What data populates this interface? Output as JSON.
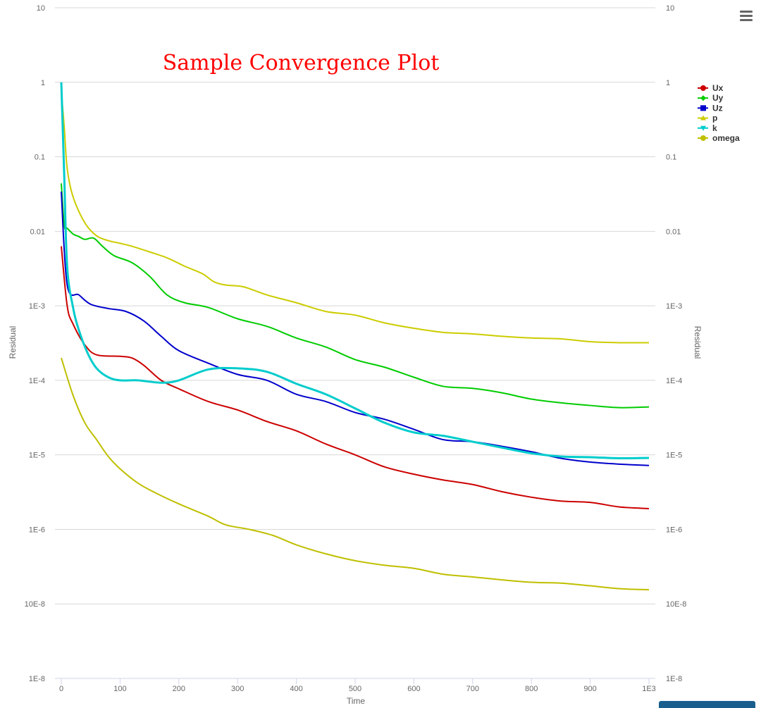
{
  "chart_data": {
    "type": "line",
    "title": "Sample Convergence Plot",
    "xlabel": "Time",
    "ylabel": "Residual",
    "y2label": "Residual",
    "yscale": "log",
    "xlim": [
      0,
      1000
    ],
    "ylim": [
      1e-08,
      10
    ],
    "grid": true,
    "legend_position": "right",
    "x_ticks": [
      {
        "value": 0,
        "label": "0"
      },
      {
        "value": 100,
        "label": "100"
      },
      {
        "value": 200,
        "label": "200"
      },
      {
        "value": 300,
        "label": "300"
      },
      {
        "value": 400,
        "label": "400"
      },
      {
        "value": 500,
        "label": "500"
      },
      {
        "value": 600,
        "label": "600"
      },
      {
        "value": 700,
        "label": "700"
      },
      {
        "value": 800,
        "label": "800"
      },
      {
        "value": 900,
        "label": "900"
      },
      {
        "value": 1000,
        "label": "1E3"
      }
    ],
    "y_ticks": [
      {
        "value": 10,
        "label": "10"
      },
      {
        "value": 1,
        "label": "1"
      },
      {
        "value": 0.1,
        "label": "0.1"
      },
      {
        "value": 0.01,
        "label": "0.01"
      },
      {
        "value": 0.001,
        "label": "1E-3"
      },
      {
        "value": 0.0001,
        "label": "1E-4"
      },
      {
        "value": 1e-05,
        "label": "1E-5"
      },
      {
        "value": 1e-06,
        "label": "1E-6"
      },
      {
        "value": 1e-07,
        "label": "10E-8"
      },
      {
        "value": 1e-08,
        "label": "1E-8"
      }
    ],
    "series": [
      {
        "name": "Ux",
        "color": "#cc0000",
        "marker": "circle",
        "points": [
          [
            0,
            0.0063
          ],
          [
            10,
            0.001
          ],
          [
            20,
            0.00057
          ],
          [
            40,
            0.0003
          ],
          [
            60,
            0.00022
          ],
          [
            100,
            0.00021
          ],
          [
            120,
            0.0002
          ],
          [
            140,
            0.00016
          ],
          [
            170,
            0.0001
          ],
          [
            200,
            7.7e-05
          ],
          [
            250,
            5.2e-05
          ],
          [
            300,
            4e-05
          ],
          [
            350,
            2.8e-05
          ],
          [
            400,
            2.1e-05
          ],
          [
            450,
            1.4e-05
          ],
          [
            500,
            1e-05
          ],
          [
            550,
            6.9e-06
          ],
          [
            600,
            5.5e-06
          ],
          [
            650,
            4.6e-06
          ],
          [
            700,
            4e-06
          ],
          [
            750,
            3.2e-06
          ],
          [
            800,
            2.7e-06
          ],
          [
            850,
            2.4e-06
          ],
          [
            900,
            2.3e-06
          ],
          [
            950,
            2e-06
          ],
          [
            1000,
            1.9e-06
          ]
        ]
      },
      {
        "name": "Uy",
        "color": "#00cc00",
        "marker": "diamond",
        "points": [
          [
            0,
            0.044
          ],
          [
            5,
            0.012
          ],
          [
            10,
            0.011
          ],
          [
            20,
            0.0092
          ],
          [
            30,
            0.0085
          ],
          [
            40,
            0.0078
          ],
          [
            55,
            0.0081
          ],
          [
            70,
            0.0063
          ],
          [
            90,
            0.0047
          ],
          [
            120,
            0.0038
          ],
          [
            150,
            0.0025
          ],
          [
            180,
            0.0014
          ],
          [
            210,
            0.0011
          ],
          [
            250,
            0.00095
          ],
          [
            300,
            0.00067
          ],
          [
            350,
            0.00053
          ],
          [
            400,
            0.00037
          ],
          [
            450,
            0.00028
          ],
          [
            500,
            0.00019
          ],
          [
            550,
            0.00015
          ],
          [
            600,
            0.00011
          ],
          [
            650,
            8.3e-05
          ],
          [
            700,
            7.8e-05
          ],
          [
            750,
            6.8e-05
          ],
          [
            800,
            5.6e-05
          ],
          [
            850,
            5e-05
          ],
          [
            900,
            4.6e-05
          ],
          [
            950,
            4.3e-05
          ],
          [
            1000,
            4.4e-05
          ]
        ]
      },
      {
        "name": "Uz",
        "color": "#0000cc",
        "marker": "square",
        "points": [
          [
            0,
            0.034
          ],
          [
            10,
            0.0019
          ],
          [
            30,
            0.0014
          ],
          [
            50,
            0.00105
          ],
          [
            80,
            0.00092
          ],
          [
            110,
            0.00084
          ],
          [
            140,
            0.00063
          ],
          [
            170,
            0.00039
          ],
          [
            200,
            0.00025
          ],
          [
            250,
            0.00017
          ],
          [
            300,
            0.00012
          ],
          [
            350,
            0.0001
          ],
          [
            400,
            6.5e-05
          ],
          [
            450,
            5.2e-05
          ],
          [
            500,
            3.7e-05
          ],
          [
            550,
            3e-05
          ],
          [
            600,
            2.2e-05
          ],
          [
            650,
            1.6e-05
          ],
          [
            700,
            1.5e-05
          ],
          [
            750,
            1.3e-05
          ],
          [
            800,
            1.1e-05
          ],
          [
            850,
            9e-06
          ],
          [
            900,
            8e-06
          ],
          [
            950,
            7.5e-06
          ],
          [
            1000,
            7.2e-06
          ]
        ]
      },
      {
        "name": "p",
        "color": "#cccc00",
        "marker": "triangle",
        "points": [
          [
            0,
            0.75
          ],
          [
            5,
            0.25
          ],
          [
            10,
            0.07
          ],
          [
            20,
            0.029
          ],
          [
            40,
            0.013
          ],
          [
            60,
            0.0087
          ],
          [
            80,
            0.0075
          ],
          [
            100,
            0.0069
          ],
          [
            120,
            0.0063
          ],
          [
            150,
            0.0053
          ],
          [
            180,
            0.0044
          ],
          [
            210,
            0.0034
          ],
          [
            240,
            0.0027
          ],
          [
            260,
            0.0021
          ],
          [
            280,
            0.0019
          ],
          [
            310,
            0.0018
          ],
          [
            350,
            0.0014
          ],
          [
            400,
            0.0011
          ],
          [
            450,
            0.00084
          ],
          [
            500,
            0.00075
          ],
          [
            550,
            0.00059
          ],
          [
            600,
            0.0005
          ],
          [
            650,
            0.00044
          ],
          [
            700,
            0.00042
          ],
          [
            750,
            0.00039
          ],
          [
            800,
            0.00037
          ],
          [
            850,
            0.00036
          ],
          [
            900,
            0.00033
          ],
          [
            950,
            0.00032
          ],
          [
            1000,
            0.00032
          ]
        ]
      },
      {
        "name": "k",
        "color": "#00cccc",
        "marker": "triangle-down",
        "points": [
          [
            0,
            1.0
          ],
          [
            5,
            0.055
          ],
          [
            10,
            0.0033
          ],
          [
            20,
            0.00095
          ],
          [
            30,
            0.00047
          ],
          [
            45,
            0.00023
          ],
          [
            60,
            0.000145
          ],
          [
            80,
            0.00011
          ],
          [
            100,
            0.0001
          ],
          [
            130,
            0.0001
          ],
          [
            170,
            9.3e-05
          ],
          [
            200,
            0.0001
          ],
          [
            250,
            0.00014
          ],
          [
            300,
            0.000145
          ],
          [
            350,
            0.00013
          ],
          [
            400,
            9e-05
          ],
          [
            450,
            6.5e-05
          ],
          [
            500,
            4.2e-05
          ],
          [
            550,
            2.7e-05
          ],
          [
            600,
            2e-05
          ],
          [
            650,
            1.8e-05
          ],
          [
            700,
            1.5e-05
          ],
          [
            750,
            1.25e-05
          ],
          [
            800,
            1.05e-05
          ],
          [
            850,
            9.5e-06
          ],
          [
            900,
            9.3e-06
          ],
          [
            950,
            9e-06
          ],
          [
            1000,
            9.1e-06
          ]
        ]
      },
      {
        "name": "omega",
        "color": "#bfbf00",
        "marker": "circle",
        "points": [
          [
            0,
            0.0002
          ],
          [
            20,
            6.3e-05
          ],
          [
            40,
            2.7e-05
          ],
          [
            60,
            1.6e-05
          ],
          [
            80,
            9.5e-06
          ],
          [
            100,
            6.5e-06
          ],
          [
            130,
            4.2e-06
          ],
          [
            160,
            3.1e-06
          ],
          [
            200,
            2.2e-06
          ],
          [
            250,
            1.5e-06
          ],
          [
            280,
            1.15e-06
          ],
          [
            320,
            1e-06
          ],
          [
            360,
            8.3e-07
          ],
          [
            400,
            6.2e-07
          ],
          [
            450,
            4.7e-07
          ],
          [
            500,
            3.8e-07
          ],
          [
            550,
            3.3e-07
          ],
          [
            600,
            3e-07
          ],
          [
            650,
            2.5e-07
          ],
          [
            700,
            2.3e-07
          ],
          [
            750,
            2.1e-07
          ],
          [
            800,
            1.95e-07
          ],
          [
            850,
            1.9e-07
          ],
          [
            900,
            1.75e-07
          ],
          [
            950,
            1.6e-07
          ],
          [
            1000,
            1.55e-07
          ]
        ]
      }
    ]
  }
}
